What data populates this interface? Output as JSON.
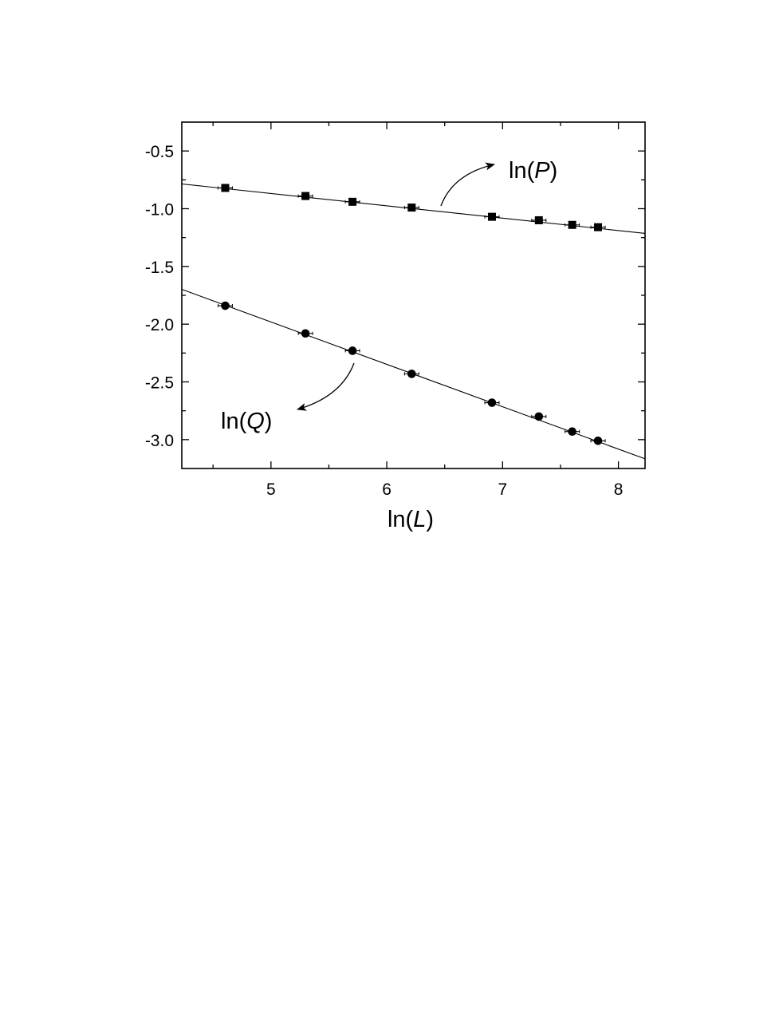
{
  "chart_data": {
    "type": "scatter",
    "xlabel": {
      "prefix": "ln(",
      "var": "L",
      "suffix": ")"
    },
    "ylabel": "",
    "xlim": [
      4.23,
      8.23
    ],
    "ylim": [
      -3.25,
      -0.25
    ],
    "x_ticks": [
      5,
      6,
      7,
      8
    ],
    "x_tick_labels": [
      "5",
      "6",
      "7",
      "8"
    ],
    "y_ticks": [
      -0.5,
      -1.0,
      -1.5,
      -2.0,
      -2.5,
      -3.0
    ],
    "y_tick_labels": [
      "-0.5",
      "-1.0",
      "-1.5",
      "-2.0",
      "-2.5",
      "-3.0"
    ],
    "grid": false,
    "series": [
      {
        "name": "ln(P)",
        "label_prefix": "ln(",
        "label_var": "P",
        "label_suffix": ")",
        "marker": "square",
        "x": [
          4.605,
          5.298,
          5.704,
          6.215,
          6.908,
          7.313,
          7.601,
          7.824
        ],
        "y": [
          -0.82,
          -0.89,
          -0.94,
          -0.99,
          -1.07,
          -1.1,
          -1.14,
          -1.16
        ],
        "fit": {
          "slope": -0.107,
          "intercept": -0.333
        }
      },
      {
        "name": "ln(Q)",
        "label_prefix": "ln(",
        "label_var": "Q",
        "label_suffix": ")",
        "marker": "circle",
        "x": [
          4.605,
          5.298,
          5.704,
          6.215,
          6.908,
          7.313,
          7.601,
          7.824
        ],
        "y": [
          -1.84,
          -2.08,
          -2.23,
          -2.43,
          -2.68,
          -2.8,
          -2.93,
          -3.01
        ],
        "fit": {
          "slope": -0.367,
          "intercept": -0.146
        }
      }
    ]
  }
}
